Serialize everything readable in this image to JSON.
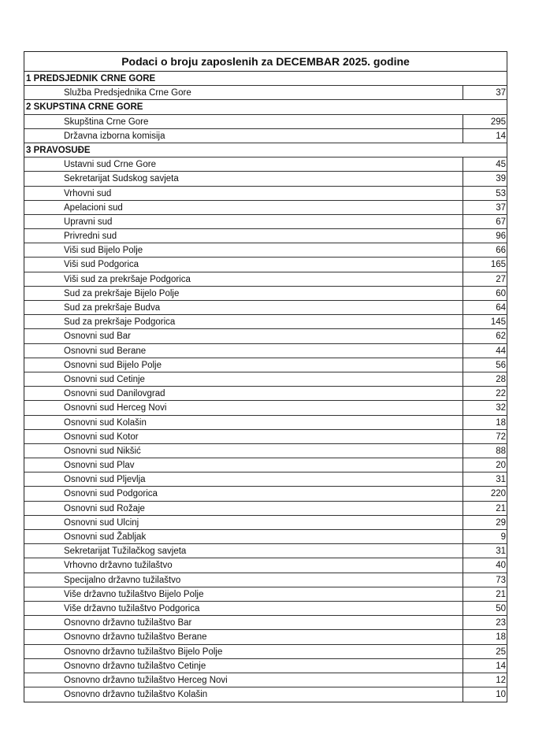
{
  "title": "Podaci o broju zaposlenih za DECEMBAR 2025. godine",
  "sections": [
    {
      "heading": "1 PREDSJEDNIK CRNE GORE",
      "items": [
        {
          "name": "Služba Predsjednika Crne Gore",
          "count": 37
        }
      ]
    },
    {
      "heading": "2 SKUPSTINA CRNE GORE",
      "items": [
        {
          "name": "Skupština Crne Gore",
          "count": 295
        },
        {
          "name": "Državna izborna komisija",
          "count": 14
        }
      ]
    },
    {
      "heading": "3 PRAVOSUĐE",
      "items": [
        {
          "name": "Ustavni sud Crne Gore",
          "count": 45
        },
        {
          "name": "Sekretarijat Sudskog savjeta",
          "count": 39
        },
        {
          "name": "Vrhovni sud",
          "count": 53
        },
        {
          "name": "Apelacioni sud",
          "count": 37
        },
        {
          "name": "Upravni sud",
          "count": 67
        },
        {
          "name": "Privredni sud",
          "count": 96
        },
        {
          "name": "Viši sud Bijelo Polje",
          "count": 66
        },
        {
          "name": "Viši sud Podgorica",
          "count": 165
        },
        {
          "name": "Viši sud za prekršaje Podgorica",
          "count": 27
        },
        {
          "name": "Sud za prekršaje Bijelo Polje",
          "count": 60
        },
        {
          "name": "Sud za prekršaje Budva",
          "count": 64
        },
        {
          "name": "Sud za prekršaje Podgorica",
          "count": 145
        },
        {
          "name": "Osnovni sud Bar",
          "count": 62
        },
        {
          "name": "Osnovni sud Berane",
          "count": 44
        },
        {
          "name": "Osnovni sud Bijelo Polje",
          "count": 56
        },
        {
          "name": "Osnovni sud Cetinje",
          "count": 28
        },
        {
          "name": "Osnovni sud Danilovgrad",
          "count": 22
        },
        {
          "name": "Osnovni sud Herceg Novi",
          "count": 32
        },
        {
          "name": "Osnovni sud Kolašin",
          "count": 18
        },
        {
          "name": "Osnovni sud Kotor",
          "count": 72
        },
        {
          "name": "Osnovni sud Nikšić",
          "count": 88
        },
        {
          "name": "Osnovni sud Plav",
          "count": 20
        },
        {
          "name": "Osnovni sud Pljevlja",
          "count": 31
        },
        {
          "name": "Osnovni sud Podgorica",
          "count": 220
        },
        {
          "name": "Osnovni sud Rožaje",
          "count": 21
        },
        {
          "name": "Osnovni sud Ulcinj",
          "count": 29
        },
        {
          "name": "Osnovni sud Žabljak",
          "count": 9
        },
        {
          "name": "Sekretarijat Tužilačkog savjeta",
          "count": 31
        },
        {
          "name": "Vrhovno državno tužilaštvo",
          "count": 40
        },
        {
          "name": "Specijalno državno tužilaštvo",
          "count": 73
        },
        {
          "name": "Više državno tužilaštvo Bijelo Polje",
          "count": 21
        },
        {
          "name": "Više državno tužilaštvo Podgorica",
          "count": 50
        },
        {
          "name": "Osnovno državno tužilaštvo Bar",
          "count": 23
        },
        {
          "name": "Osnovno državno tužilaštvo Berane",
          "count": 18
        },
        {
          "name": "Osnovno državno tužilaštvo Bijelo Polje",
          "count": 25
        },
        {
          "name": "Osnovno državno tužilaštvo Cetinje",
          "count": 14
        },
        {
          "name": "Osnovno državno tužilaštvo Herceg Novi",
          "count": 12
        },
        {
          "name": "Osnovno državno tužilaštvo Kolašin",
          "count": 10
        }
      ]
    }
  ]
}
